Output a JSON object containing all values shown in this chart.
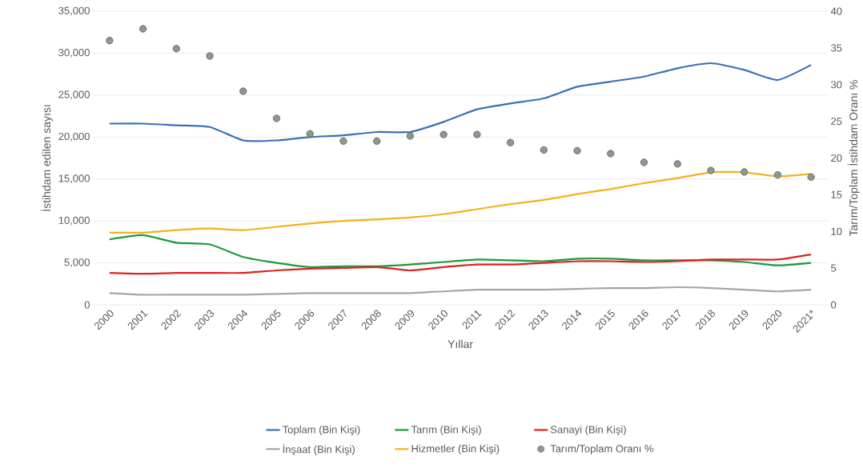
{
  "chart_data": {
    "type": "line",
    "xlabel": "Yıllar",
    "ylabel": "İstihdam edilen sayısı",
    "y2label": "Tarım/Toplam İstihdam Oranı %",
    "categories": [
      "2000",
      "2001",
      "2002",
      "2003",
      "2004",
      "2005",
      "2006",
      "2007",
      "2008",
      "2009",
      "2010",
      "2011",
      "2012",
      "2013",
      "2014",
      "2015",
      "2016",
      "2017",
      "2018",
      "2019",
      "2020",
      "2021*"
    ],
    "series": [
      {
        "name": "Toplam (Bin Kişi)",
        "color": "#3b6fb6",
        "values": [
          21600,
          21600,
          21400,
          21200,
          19600,
          19600,
          20000,
          20200,
          20600,
          20600,
          21800,
          23300,
          24000,
          24600,
          26000,
          26600,
          27200,
          28200,
          28800,
          28000,
          26800,
          28600
        ]
      },
      {
        "name": "Tarım (Bin Kişi)",
        "color": "#1a9a3c",
        "values": [
          7800,
          8300,
          7400,
          7200,
          5700,
          5000,
          4500,
          4600,
          4600,
          4800,
          5100,
          5400,
          5300,
          5200,
          5500,
          5500,
          5300,
          5300,
          5300,
          5100,
          4700,
          5000
        ]
      },
      {
        "name": "Sanayi (Bin Kişi)",
        "color": "#e0201f",
        "values": [
          3800,
          3700,
          3800,
          3800,
          3800,
          4100,
          4300,
          4400,
          4500,
          4100,
          4500,
          4800,
          4800,
          5000,
          5200,
          5200,
          5100,
          5200,
          5400,
          5400,
          5400,
          6000
        ]
      },
      {
        "name": "İnşaat (Bin Kişi)",
        "color": "#a5a5a5",
        "values": [
          1400,
          1200,
          1200,
          1200,
          1200,
          1300,
          1400,
          1400,
          1400,
          1400,
          1600,
          1800,
          1800,
          1800,
          1900,
          2000,
          2000,
          2100,
          2000,
          1800,
          1600,
          1800
        ]
      },
      {
        "name": "Hizmetler (Bin Kişi)",
        "color": "#f2b21b",
        "values": [
          8600,
          8600,
          8900,
          9100,
          8900,
          9300,
          9700,
          10000,
          10200,
          10400,
          10800,
          11400,
          12000,
          12500,
          13200,
          13800,
          14500,
          15100,
          15800,
          15800,
          15300,
          15600
        ]
      },
      {
        "name": "Tarım/Toplam Oranı %",
        "type": "scatter",
        "axis": "y2",
        "marker": "circle",
        "color": "#8c9a8c",
        "values": [
          36.0,
          37.6,
          34.9,
          33.9,
          29.1,
          25.4,
          23.3,
          22.3,
          22.3,
          23.0,
          23.2,
          23.2,
          22.1,
          21.1,
          21.0,
          20.6,
          19.4,
          19.2,
          18.3,
          18.1,
          17.7,
          17.4
        ]
      }
    ],
    "ylim": [
      0,
      35000
    ],
    "yticks": [
      0,
      {
        "value": 5000,
        "label": "5,000"
      },
      {
        "value": 10000,
        "label": "10,000"
      },
      {
        "value": 15000,
        "label": "15,000"
      },
      {
        "value": 20000,
        "label": "20,000"
      },
      {
        "value": 25000,
        "label": "25,000"
      },
      {
        "value": 30000,
        "label": "30,000"
      },
      {
        "value": 35000,
        "label": "35,000"
      }
    ],
    "y2lim": [
      0,
      40
    ],
    "y2ticks": [
      0,
      5,
      10,
      15,
      20,
      25,
      30,
      35,
      40
    ],
    "grid": "y",
    "legend": "bottom"
  }
}
